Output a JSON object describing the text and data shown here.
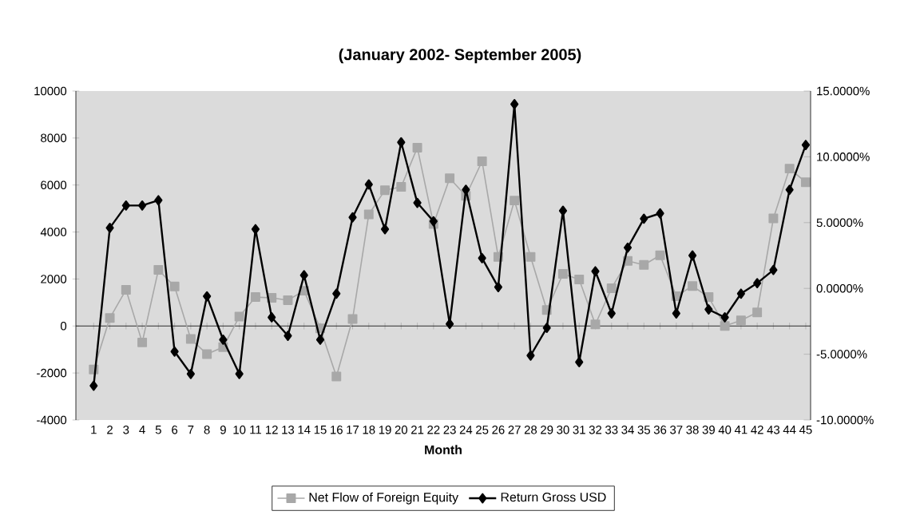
{
  "chart_data": {
    "type": "line",
    "title": "(January 2002- September 2005)",
    "xlabel": "Month",
    "categories": [
      "1",
      "2",
      "3",
      "4",
      "5",
      "6",
      "7",
      "8",
      "9",
      "10",
      "11",
      "12",
      "13",
      "14",
      "15",
      "16",
      "17",
      "18",
      "19",
      "20",
      "21",
      "22",
      "23",
      "24",
      "25",
      "26",
      "27",
      "28",
      "29",
      "30",
      "31",
      "32",
      "33",
      "34",
      "35",
      "36",
      "37",
      "38",
      "39",
      "40",
      "41",
      "42",
      "43",
      "44",
      "45"
    ],
    "series": [
      {
        "name": "Net Flow of Foreign Equity",
        "color": "#a8a8a8",
        "marker": "square",
        "values": [
          -1850,
          340,
          1540,
          -700,
          2390,
          1680,
          -550,
          -1200,
          -900,
          400,
          1230,
          1200,
          1100,
          1500,
          -100,
          -2150,
          300,
          4750,
          5780,
          5920,
          7590,
          4340,
          6290,
          5540,
          7010,
          2940,
          5340,
          2940,
          680,
          2220,
          1980,
          70,
          1610,
          2770,
          2600,
          3010,
          1270,
          1700,
          1230,
          0,
          240,
          580,
          4580,
          6700,
          6120
        ]
      },
      {
        "name": "Return Gross USD",
        "color": "#000000",
        "marker": "diamond",
        "axis": "y2",
        "values": [
          -7.4,
          4.6,
          6.3,
          6.3,
          6.7,
          -4.8,
          -6.5,
          -0.6,
          -3.9,
          -6.5,
          4.5,
          -2.2,
          -3.6,
          1.0,
          -3.9,
          -0.4,
          5.4,
          7.9,
          4.5,
          11.1,
          6.5,
          5.1,
          -2.7,
          7.5,
          2.3,
          0.1,
          14.0,
          -5.1,
          -3.0,
          5.9,
          -5.6,
          1.3,
          -1.9,
          3.1,
          5.3,
          5.7,
          -1.9,
          2.5,
          -1.6,
          -2.2,
          -0.4,
          0.4,
          1.4,
          7.5,
          10.9
        ]
      }
    ],
    "ylim": [
      -4000,
      10000
    ],
    "yticks": [
      -4000,
      -2000,
      0,
      2000,
      4000,
      6000,
      8000,
      10000
    ],
    "y2lim": [
      -10,
      15
    ],
    "y2ticks": [
      {
        "value": -10,
        "label": "-10.0000%"
      },
      {
        "value": -5,
        "label": "-5.0000%"
      },
      {
        "value": 0,
        "label": "0.0000%"
      },
      {
        "value": 5,
        "label": "5.0000%"
      },
      {
        "value": 10,
        "label": "10.0000%"
      },
      {
        "value": 15,
        "label": "15.0000%"
      }
    ],
    "legend": "bottom"
  }
}
